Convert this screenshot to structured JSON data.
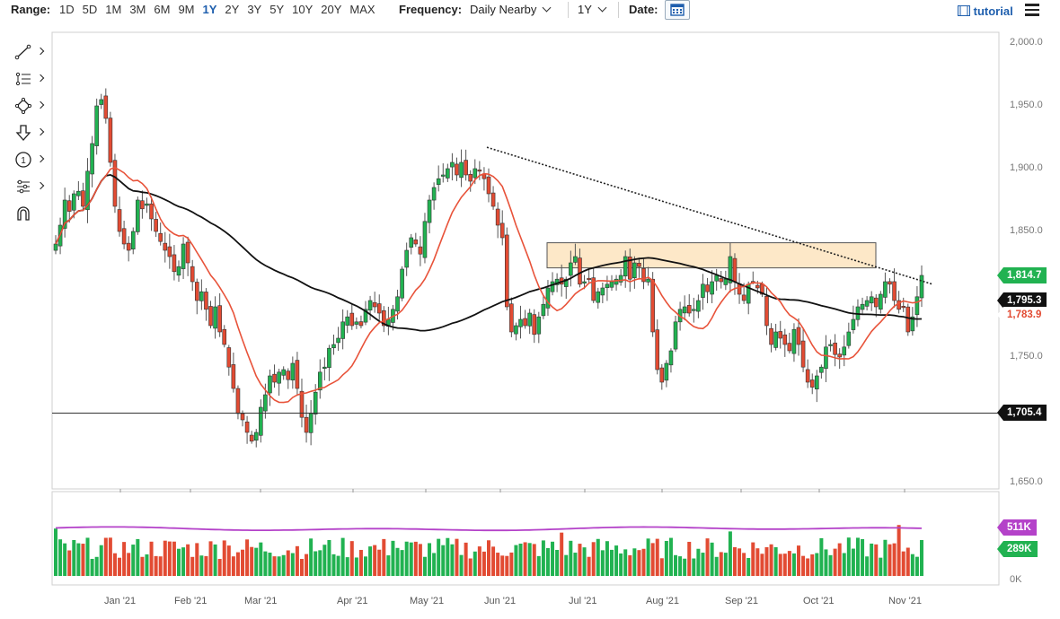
{
  "toolbar": {
    "range_label": "Range:",
    "ranges": [
      "1D",
      "5D",
      "1M",
      "3M",
      "6M",
      "9M",
      "1Y",
      "2Y",
      "3Y",
      "5Y",
      "10Y",
      "20Y",
      "MAX"
    ],
    "active_range": "1Y",
    "frequency_label": "Frequency:",
    "frequency_value": "Daily Nearby",
    "period_value": "1Y",
    "date_label": "Date:",
    "tutorial_label": "tutorial"
  },
  "tools": [
    "line-tool-icon",
    "fib-tool-icon",
    "shape-tool-icon",
    "arrow-tool-icon",
    "count-tool-icon",
    "tool-settings-icon",
    "magnet-icon"
  ],
  "chart_data": {
    "type": "candlestick",
    "x_ticks": [
      "Jan '21",
      "Feb '21",
      "Mar '21",
      "Apr '21",
      "May '21",
      "Jun '21",
      "Jul '21",
      "Aug '21",
      "Sep '21",
      "Oct '21",
      "Nov '21"
    ],
    "y_ticks": [
      "2,000.0",
      "1,950.0",
      "1,900.0",
      "1,850.0",
      "1,750.0",
      "1,650.0"
    ],
    "ylim": [
      1650,
      2000
    ],
    "price_tags": [
      {
        "value": 1814.7,
        "label": "1,814.7",
        "color": "#21b251",
        "text_color": "#ffffff"
      },
      {
        "value": 1795.3,
        "label": "1,795.3",
        "color": "#111111",
        "text_color": "#ffffff"
      },
      {
        "value": 1783.9,
        "label": "1,783.9",
        "color": "#ffffff",
        "text_color": "#e24b33"
      },
      {
        "value": 1705.4,
        "label": "1,705.4",
        "color": "#111111",
        "text_color": "#ffffff"
      }
    ],
    "horizontal_line": 1705.4,
    "resistance_zone": {
      "start": "Jun '21",
      "end": "Oct '21",
      "low": 1821,
      "high": 1841
    },
    "trendline": {
      "from": {
        "date": "late May '21",
        "value": 1917
      },
      "to": {
        "date": "Nov '21",
        "value": 1808
      }
    },
    "ma_fast_color": "#e8533a",
    "ma_slow_color": "#111111",
    "ohlc_closes": [
      1840,
      1855,
      1875,
      1866,
      1880,
      1882,
      1870,
      1898,
      1920,
      1950,
      1955,
      1940,
      1905,
      1870,
      1850,
      1840,
      1835,
      1850,
      1875,
      1868,
      1872,
      1860,
      1850,
      1842,
      1835,
      1830,
      1818,
      1822,
      1840,
      1825,
      1810,
      1795,
      1802,
      1788,
      1775,
      1790,
      1770,
      1760,
      1742,
      1725,
      1705,
      1700,
      1690,
      1683,
      1690,
      1710,
      1720,
      1735,
      1730,
      1738,
      1740,
      1732,
      1745,
      1725,
      1702,
      1690,
      1705,
      1722,
      1738,
      1742,
      1757,
      1760,
      1765,
      1778,
      1782,
      1775,
      1778,
      1775,
      1788,
      1795,
      1790,
      1785,
      1775,
      1780,
      1788,
      1798,
      1820,
      1835,
      1845,
      1840,
      1832,
      1858,
      1875,
      1885,
      1892,
      1895,
      1900,
      1905,
      1895,
      1905,
      1895,
      1890,
      1900,
      1898,
      1892,
      1880,
      1870,
      1855,
      1845,
      1790,
      1770,
      1775,
      1780,
      1775,
      1785,
      1768,
      1782,
      1792,
      1805,
      1810,
      1812,
      1808,
      1812,
      1825,
      1830,
      1808,
      1810,
      1812,
      1795,
      1802,
      1805,
      1808,
      1810,
      1812,
      1815,
      1830,
      1812,
      1825,
      1822,
      1810,
      1812,
      1770,
      1740,
      1730,
      1745,
      1755,
      1778,
      1788,
      1790,
      1785,
      1788,
      1795,
      1808,
      1802,
      1810,
      1815,
      1810,
      1812,
      1830,
      1810,
      1800,
      1795,
      1808,
      1810,
      1805,
      1800,
      1775,
      1760,
      1770,
      1765,
      1760,
      1755,
      1772,
      1760,
      1742,
      1730,
      1726,
      1735,
      1742,
      1758,
      1760,
      1752,
      1750,
      1758,
      1770,
      1780,
      1790,
      1792,
      1795,
      1798,
      1790,
      1800,
      1810,
      1808,
      1795,
      1788,
      1790,
      1770,
      1782,
      1798,
      1815
    ],
    "volume_tags": [
      {
        "value": 511,
        "label": "511K",
        "color": "#b442c9"
      },
      {
        "value": 289,
        "label": "289K",
        "color": "#21b251"
      }
    ],
    "volume_ylim": [
      0,
      800
    ],
    "volume_zero_label": "0K"
  }
}
